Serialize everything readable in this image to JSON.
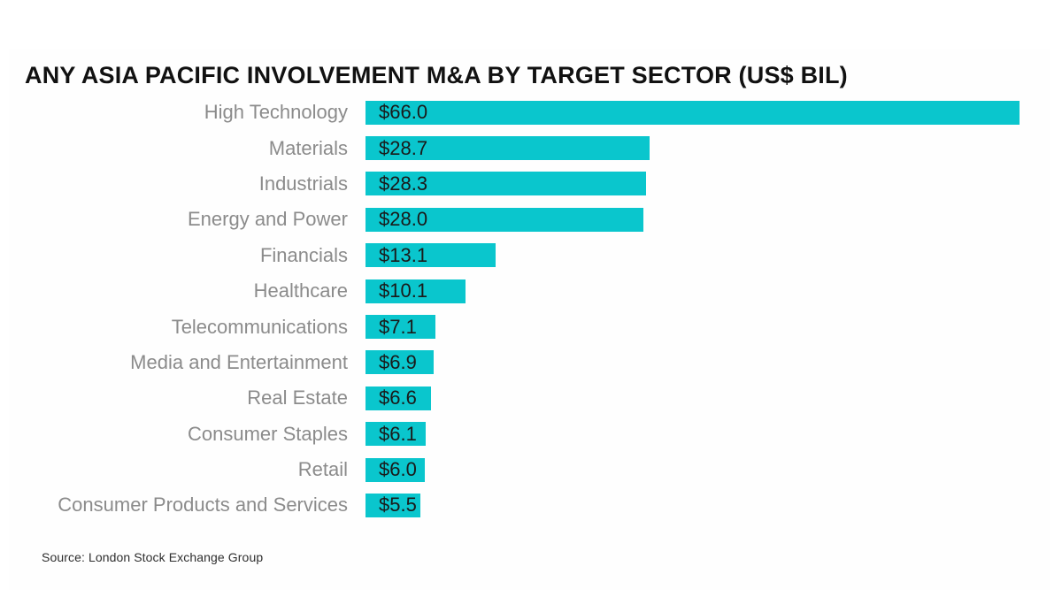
{
  "title": "ANY ASIA PACIFIC INVOLVEMENT M&A BY TARGET SECTOR (US$ BIL)",
  "source": "Source: London Stock Exchange Group",
  "colors": {
    "bar": "#0AC6CD",
    "category_label": "#8b8b8b",
    "value_label": "#1a1a1a",
    "title": "#111111",
    "background": "#ffffff"
  },
  "chart_data": {
    "type": "bar",
    "orientation": "horizontal",
    "title": "ANY ASIA PACIFIC INVOLVEMENT M&A BY TARGET SECTOR (US$ BIL)",
    "xlabel": "",
    "ylabel": "",
    "xlim": [
      0,
      66
    ],
    "grid": false,
    "legend": false,
    "categories": [
      "High Technology",
      "Materials",
      "Industrials",
      "Energy and Power",
      "Financials",
      "Healthcare",
      "Telecommunications",
      "Media and Entertainment",
      "Real Estate",
      "Consumer Staples",
      "Retail",
      "Consumer Products and Services"
    ],
    "values": [
      66.0,
      28.7,
      28.3,
      28.0,
      13.1,
      10.1,
      7.1,
      6.9,
      6.6,
      6.1,
      6.0,
      5.5
    ],
    "value_labels": [
      "$66.0",
      "$28.7",
      "$28.3",
      "$28.0",
      "$13.1",
      "$10.1",
      "$7.1",
      "$6.9",
      "$6.6",
      "$6.1",
      "$6.0",
      "$5.5"
    ]
  }
}
